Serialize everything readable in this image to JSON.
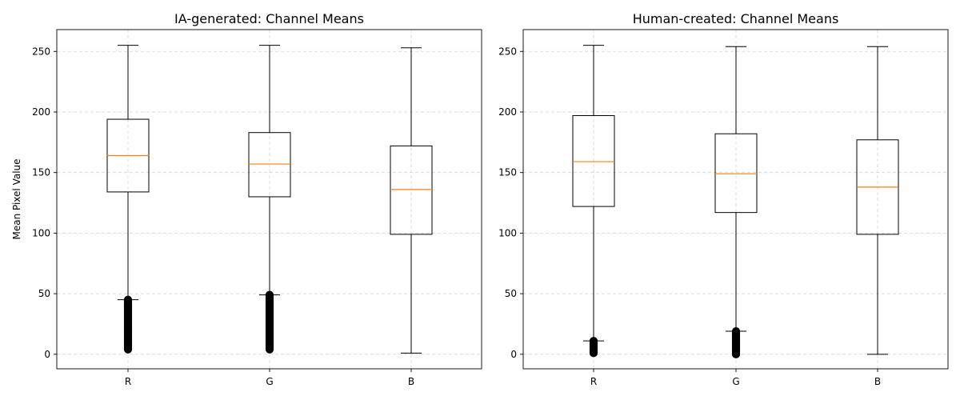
{
  "chart_data": [
    {
      "type": "boxplot",
      "title": "IA-generated: Channel Means",
      "xlabel": "",
      "ylabel": "Mean Pixel Value",
      "categories": [
        "R",
        "G",
        "B"
      ],
      "ylim": [
        -12,
        268
      ],
      "yticks": [
        0,
        50,
        100,
        150,
        200,
        250
      ],
      "grid": true,
      "boxes": [
        {
          "label": "R",
          "whisker_low": 45,
          "q1": 134,
          "median": 164,
          "q3": 194,
          "whisker_high": 255,
          "outliers_range": [
            4,
            45
          ]
        },
        {
          "label": "G",
          "whisker_low": 49,
          "q1": 130,
          "median": 157,
          "q3": 183,
          "whisker_high": 255,
          "outliers_range": [
            4,
            49
          ]
        },
        {
          "label": "B",
          "whisker_low": 1,
          "q1": 99,
          "median": 136,
          "q3": 172,
          "whisker_high": 253,
          "outliers_range": null
        }
      ]
    },
    {
      "type": "boxplot",
      "title": "Human-created: Channel Means",
      "xlabel": "",
      "ylabel": "",
      "categories": [
        "R",
        "G",
        "B"
      ],
      "ylim": [
        -12,
        268
      ],
      "yticks": [
        0,
        50,
        100,
        150,
        200,
        250
      ],
      "grid": true,
      "boxes": [
        {
          "label": "R",
          "whisker_low": 11,
          "q1": 122,
          "median": 159,
          "q3": 197,
          "whisker_high": 255,
          "outliers_range": [
            1,
            11
          ]
        },
        {
          "label": "G",
          "whisker_low": 19,
          "q1": 117,
          "median": 149,
          "q3": 182,
          "whisker_high": 254,
          "outliers_range": [
            0,
            19
          ]
        },
        {
          "label": "B",
          "whisker_low": 0,
          "q1": 99,
          "median": 138,
          "q3": 177,
          "whisker_high": 254,
          "outliers_range": null
        }
      ]
    }
  ],
  "colors": {
    "box": "#000000",
    "median": "#ff7f0e",
    "grid": "#b0b0b0"
  }
}
